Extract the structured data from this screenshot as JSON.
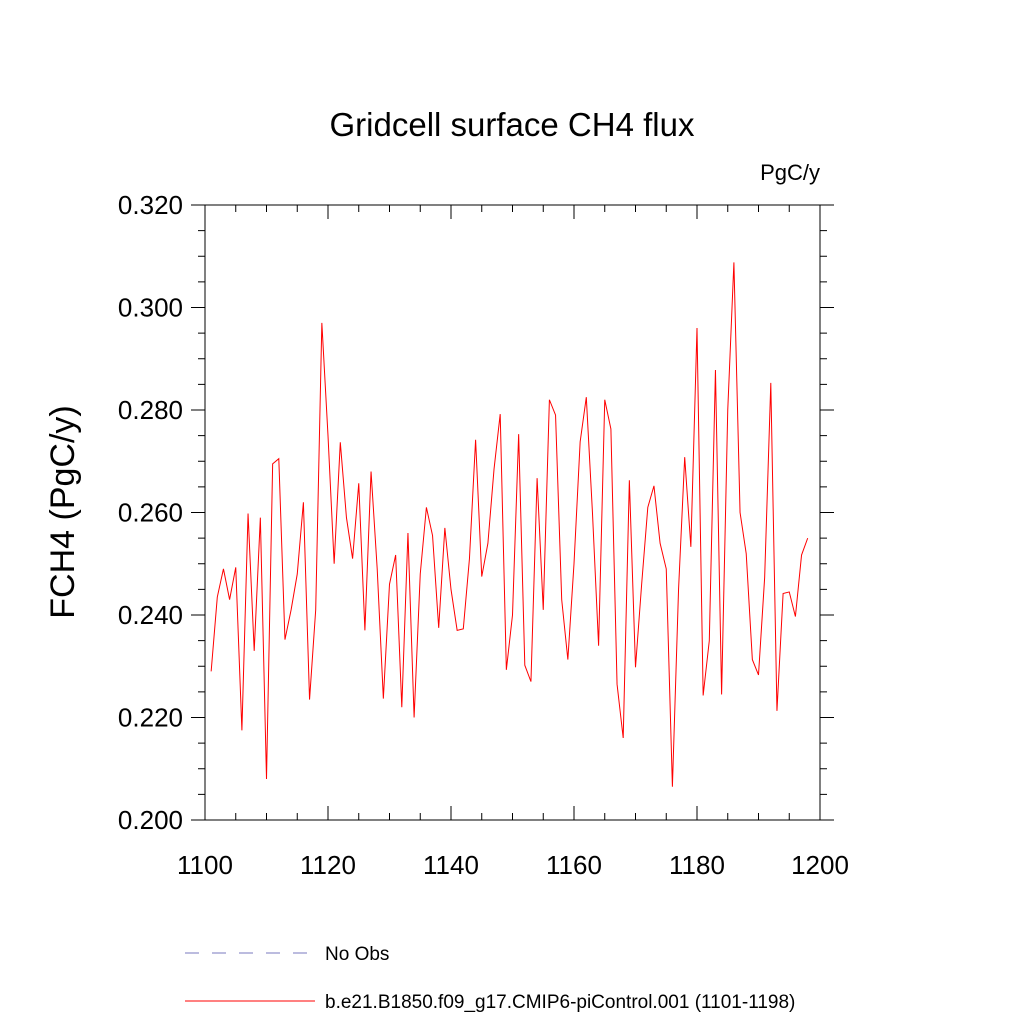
{
  "chart_data": {
    "type": "line",
    "title": "Gridcell surface CH4 flux",
    "units_label": "PgC/y",
    "xlabel": "",
    "ylabel": "FCH4  (PgC/y)",
    "xlim": [
      1100,
      1200
    ],
    "ylim": [
      0.2,
      0.32
    ],
    "x_ticks": [
      "1100",
      "1120",
      "1140",
      "1160",
      "1180",
      "1200"
    ],
    "y_ticks": [
      "0.200",
      "0.220",
      "0.240",
      "0.260",
      "0.280",
      "0.300",
      "0.320"
    ],
    "legend": [
      {
        "name": "No Obs",
        "style": "dashed",
        "color": "#7a7abf"
      },
      {
        "name": "b.e21.B1850.f09_g17.CMIP6-piControl.001 (1101-1198)",
        "style": "solid",
        "color": "#ff0000"
      }
    ],
    "series": [
      {
        "name": "b.e21.B1850.f09_g17.CMIP6-piControl.001 (1101-1198)",
        "color": "#ff0000",
        "x_start": 1101,
        "x_step": 1,
        "values": [
          0.229,
          0.2435,
          0.249,
          0.243,
          0.2493,
          0.2175,
          0.2598,
          0.233,
          0.259,
          0.208,
          0.2695,
          0.2705,
          0.2352,
          0.241,
          0.248,
          0.262,
          0.2235,
          0.241,
          0.297,
          0.275,
          0.25,
          0.2737,
          0.259,
          0.251,
          0.2657,
          0.237,
          0.268,
          0.249,
          0.2237,
          0.246,
          0.2517,
          0.222,
          0.256,
          0.22,
          0.248,
          0.261,
          0.2555,
          0.2375,
          0.257,
          0.245,
          0.237,
          0.2373,
          0.251,
          0.2742,
          0.2475,
          0.254,
          0.2685,
          0.2792,
          0.2293,
          0.24,
          0.2753,
          0.2302,
          0.227,
          0.2667,
          0.241,
          0.282,
          0.279,
          0.243,
          0.2313,
          0.25,
          0.2738,
          0.2825,
          0.26,
          0.234,
          0.282,
          0.2763,
          0.2265,
          0.216,
          0.2663,
          0.2298,
          0.246,
          0.261,
          0.2652,
          0.254,
          0.249,
          0.2065,
          0.245,
          0.2708,
          0.2533,
          0.296,
          0.2243,
          0.235,
          0.2878,
          0.2245,
          0.28,
          0.3088,
          0.26,
          0.252,
          0.2313,
          0.2283,
          0.2473,
          0.2853,
          0.2213,
          0.2442,
          0.2445,
          0.2397,
          0.2517,
          0.255
        ]
      }
    ]
  }
}
